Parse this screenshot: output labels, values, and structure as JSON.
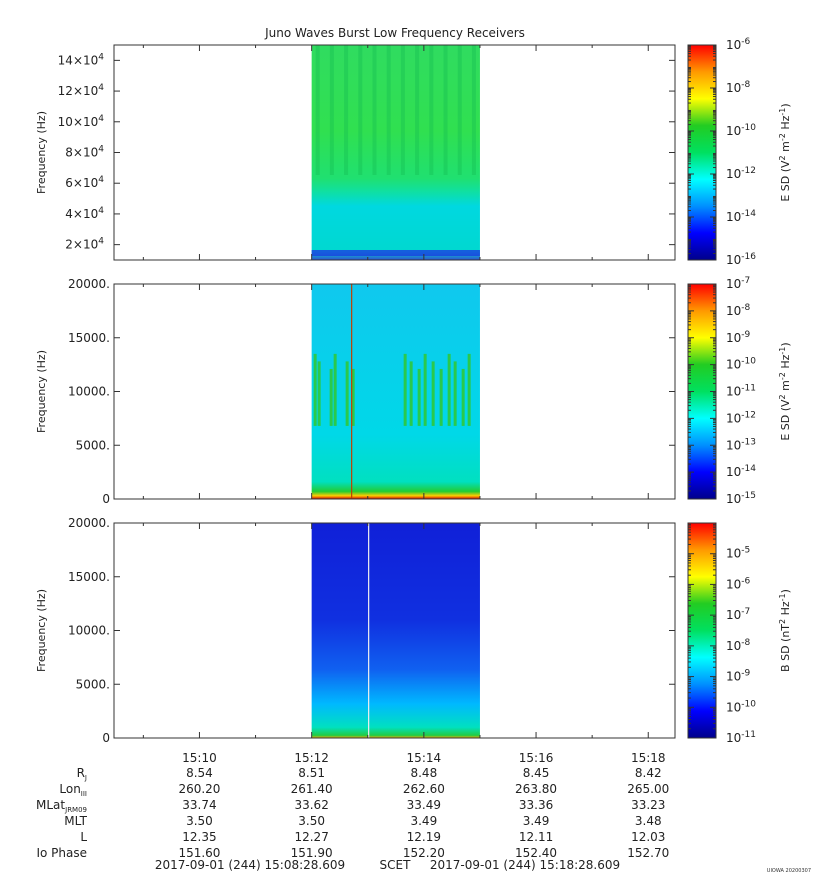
{
  "title": "Juno Waves Burst Low Frequency Receivers",
  "stamp": "UIOWA 20200307",
  "colors": {
    "background": "#ffffff",
    "axis": "#333333",
    "colormap": [
      "#00008b",
      "#0000ff",
      "#0090ff",
      "#00ffff",
      "#00e060",
      "#22cc22",
      "#ffff00",
      "#ff9900",
      "#ff0000"
    ]
  },
  "chart_data": [
    {
      "type": "heatmap",
      "panel": "top",
      "ylabel": "Frequency (Hz)",
      "ylim": [
        10000,
        150000
      ],
      "yticks": [
        {
          "value": 20000,
          "mant": "2×10",
          "exp": "4"
        },
        {
          "value": 40000,
          "mant": "4×10",
          "exp": "4"
        },
        {
          "value": 60000,
          "mant": "6×10",
          "exp": "4"
        },
        {
          "value": 80000,
          "mant": "8×10",
          "exp": "4"
        },
        {
          "value": 100000,
          "mant": "10×10",
          "exp": "4"
        },
        {
          "value": 120000,
          "mant": "12×10",
          "exp": "4"
        },
        {
          "value": 140000,
          "mant": "14×10",
          "exp": "4"
        }
      ],
      "data_time_range": [
        "15:12",
        "15:15"
      ],
      "colorbar": {
        "label_parts": [
          "E SD (V",
          "2",
          " m",
          "-2",
          " Hz",
          "-1",
          ")"
        ],
        "scale": "log",
        "range_exp": [
          -16,
          -6
        ],
        "ticks": [
          {
            "base": "10",
            "exp": "-6"
          },
          {
            "base": "10",
            "exp": "-8"
          },
          {
            "base": "10",
            "exp": "-10"
          },
          {
            "base": "10",
            "exp": "-12"
          },
          {
            "base": "10",
            "exp": "-14"
          },
          {
            "base": "10",
            "exp": "-16"
          }
        ]
      }
    },
    {
      "type": "heatmap",
      "panel": "middle",
      "ylabel": "Frequency (Hz)",
      "ylim": [
        0,
        20000
      ],
      "yticks": [
        {
          "value": 0,
          "label": "0"
        },
        {
          "value": 5000,
          "label": "5000."
        },
        {
          "value": 10000,
          "label": "10000."
        },
        {
          "value": 15000,
          "label": "15000."
        },
        {
          "value": 20000,
          "label": "20000."
        }
      ],
      "data_time_range": [
        "15:12",
        "15:15"
      ],
      "colorbar": {
        "label_parts": [
          "E SD (V",
          "2",
          " m",
          "-2",
          " Hz",
          "-1",
          ")"
        ],
        "scale": "log",
        "range_exp": [
          -15,
          -7
        ],
        "ticks": [
          {
            "base": "10",
            "exp": "-7"
          },
          {
            "base": "10",
            "exp": "-8"
          },
          {
            "base": "10",
            "exp": "-9"
          },
          {
            "base": "10",
            "exp": "-10"
          },
          {
            "base": "10",
            "exp": "-11"
          },
          {
            "base": "10",
            "exp": "-12"
          },
          {
            "base": "10",
            "exp": "-13"
          },
          {
            "base": "10",
            "exp": "-14"
          },
          {
            "base": "10",
            "exp": "-15"
          }
        ]
      }
    },
    {
      "type": "heatmap",
      "panel": "bottom",
      "ylabel": "Frequency (Hz)",
      "ylim": [
        0,
        20000
      ],
      "yticks": [
        {
          "value": 0,
          "label": "0"
        },
        {
          "value": 5000,
          "label": "5000."
        },
        {
          "value": 10000,
          "label": "10000."
        },
        {
          "value": 15000,
          "label": "15000."
        },
        {
          "value": 20000,
          "label": "20000."
        }
      ],
      "data_time_range": [
        "15:12",
        "15:15"
      ],
      "colorbar": {
        "label_parts": [
          "B SD (nT",
          "2",
          " Hz",
          "-1",
          ")"
        ],
        "scale": "log",
        "range_exp": [
          -11,
          -4
        ],
        "ticks": [
          {
            "base": "10",
            "exp": "-5"
          },
          {
            "base": "10",
            "exp": "-6"
          },
          {
            "base": "10",
            "exp": "-7"
          },
          {
            "base": "10",
            "exp": "-8"
          },
          {
            "base": "10",
            "exp": "-9"
          },
          {
            "base": "10",
            "exp": "-10"
          },
          {
            "base": "10",
            "exp": "-11"
          }
        ]
      }
    }
  ],
  "time_axis": {
    "range": [
      "15:08:28.609",
      "15:18:28.609"
    ],
    "ticks": [
      "15:10",
      "15:12",
      "15:14",
      "15:16",
      "15:18"
    ],
    "ephemeris": [
      {
        "label": "R",
        "sub": "J",
        "values": [
          "8.54",
          "8.51",
          "8.48",
          "8.45",
          "8.42"
        ]
      },
      {
        "label": "Lon",
        "sub": "III",
        "values": [
          "260.20",
          "261.40",
          "262.60",
          "263.80",
          "265.00"
        ]
      },
      {
        "label": "MLat",
        "sub": "JRM09",
        "values": [
          "33.74",
          "33.62",
          "33.49",
          "33.36",
          "33.23"
        ]
      },
      {
        "label": "MLT",
        "sub": "",
        "values": [
          "3.50",
          "3.50",
          "3.49",
          "3.49",
          "3.48"
        ]
      },
      {
        "label": "L",
        "sub": "",
        "values": [
          "12.35",
          "12.27",
          "12.19",
          "12.11",
          "12.03"
        ]
      },
      {
        "label": "Io Phase",
        "sub": "",
        "values": [
          "151.60",
          "151.90",
          "152.20",
          "152.40",
          "152.70"
        ]
      }
    ],
    "footer": {
      "start": "2017-09-01 (244) 15:08:28.609",
      "mid": "SCET",
      "end": "2017-09-01 (244) 15:18:28.609"
    }
  }
}
